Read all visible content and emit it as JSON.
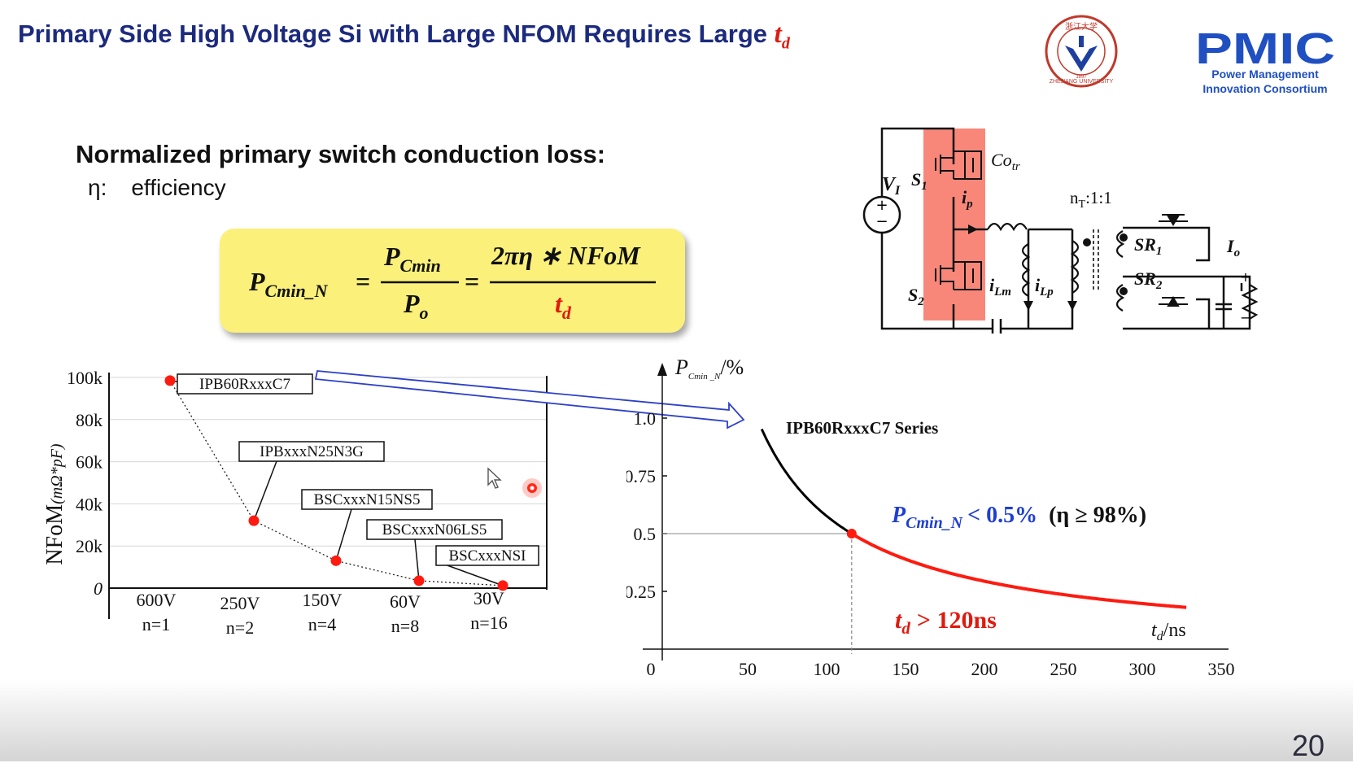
{
  "slide": {
    "title": "Primary Side High Voltage Si with Large NFOM Requires Large",
    "title_td": "t",
    "title_td_sub": "d",
    "page_number": "20",
    "logo_brand": "PMIC",
    "logo_line1": "Power Management",
    "logo_line2": "Innovation Consortium",
    "university": "ZHEJIANG UNIVERSITY",
    "university_year": "1897",
    "university_cn": "浙江大学"
  },
  "heading": {
    "loss": "Normalized  primary switch conduction loss:",
    "eta_symbol": "η:",
    "eta_text": "efficiency"
  },
  "formula": {
    "lhs": "P",
    "lhs_sub": "Cmin_N",
    "eq": "=",
    "frac1_num": "P",
    "frac1_num_sub": "Cmin",
    "frac1_den": "P",
    "frac1_den_sub": "o",
    "frac2_num": "2πη ∗ NFoM",
    "frac2_den": "t",
    "frac2_den_sub": "d",
    "colors": {
      "box": "#fbf07a",
      "td": "#e01a0f"
    }
  },
  "circuit": {
    "vi": "V",
    "vi_sub": "I",
    "s1": "S",
    "s1_sub": "1",
    "s2": "S",
    "s2_sub": "2",
    "cotr": "Co",
    "cotr_sub": "tr",
    "ip": "i",
    "ip_sub": "p",
    "ilm": "i",
    "ilm_sub": "Lm",
    "ilp": "i",
    "ilp_sub": "Lp",
    "ratio": "n",
    "ratio_sub": "T",
    "ratio_rest": ":1:1",
    "sr1": "SR",
    "sr1_sub": "1",
    "sr2": "SR",
    "sr2_sub": "2",
    "io": "I",
    "io_sub": "o",
    "plus": "+",
    "minus": "−",
    "highlight_color": "#f8877a"
  },
  "chart_data": [
    {
      "type": "scatter",
      "ylabel": "NFoM",
      "ylabel_unit": "(mΩ*pF)",
      "yticks": [
        {
          "value": 0,
          "label": "0"
        },
        {
          "value": 20000,
          "label": "20k"
        },
        {
          "value": 40000,
          "label": "40k"
        },
        {
          "value": 60000,
          "label": "60k"
        },
        {
          "value": 80000,
          "label": "80k"
        },
        {
          "value": 100000,
          "label": "100k"
        }
      ],
      "ylim": [
        0,
        100000
      ],
      "grid": true,
      "categories": [
        {
          "voltage": "600V",
          "n": "n=1"
        },
        {
          "voltage": "250V",
          "n": "n=2"
        },
        {
          "voltage": "150V",
          "n": "n=4"
        },
        {
          "voltage": "60V",
          "n": "n=8"
        },
        {
          "voltage": "30V",
          "n": "n=16"
        }
      ],
      "points": [
        {
          "category": 0,
          "value": 98500,
          "label": "IPB60RxxxC7"
        },
        {
          "category": 1,
          "value": 32000,
          "label": "IPBxxxN25N3G"
        },
        {
          "category": 2,
          "value": 13000,
          "label": "BSCxxxN15NS5"
        },
        {
          "category": 3,
          "value": 3500,
          "label": "BSCxxxN06LS5"
        },
        {
          "category": 4,
          "value": 1200,
          "label": "BSCxxxNSI"
        }
      ],
      "point_color": "#ff1a0f"
    },
    {
      "type": "line",
      "ylabel": "P",
      "ylabel_sub": "Cmin _N",
      "ylabel_unit": "/%",
      "xlabel": "t",
      "xlabel_sub": "d",
      "xlabel_unit": "/ns",
      "xticks": [
        {
          "value": 0,
          "label": "0"
        },
        {
          "value": 50,
          "label": "50"
        },
        {
          "value": 100,
          "label": "100"
        },
        {
          "value": 150,
          "label": "150"
        },
        {
          "value": 200,
          "label": "200"
        },
        {
          "value": 250,
          "label": "250"
        },
        {
          "value": 300,
          "label": "300"
        },
        {
          "value": 350,
          "label": "350"
        }
      ],
      "yticks": [
        {
          "value": 0.25,
          "label": "0.25"
        },
        {
          "value": 0.5,
          "label": "0.5"
        },
        {
          "value": 0.75,
          "label": "0.75"
        },
        {
          "value": 1.0,
          "label": "1.0"
        }
      ],
      "xlim": [
        0,
        350
      ],
      "ylim": [
        0,
        1.25
      ],
      "series": [
        {
          "name": "IPB60RxxxC7 Series",
          "k": 60,
          "x_range": [
            63,
            332
          ],
          "color_low_td": "#000000",
          "color_high_td": "#ff1a0f"
        }
      ],
      "marker": {
        "x": 120,
        "y": 0.5
      },
      "annotation_condition": {
        "lhs": "P",
        "lhs_sub": "Cmin_N",
        "op": "< 0.5%",
        "cond": "(η ≥ 98%)"
      },
      "annotation_td": {
        "lhs": "t",
        "lhs_sub": "d",
        "op": "> 120ns"
      }
    }
  ]
}
